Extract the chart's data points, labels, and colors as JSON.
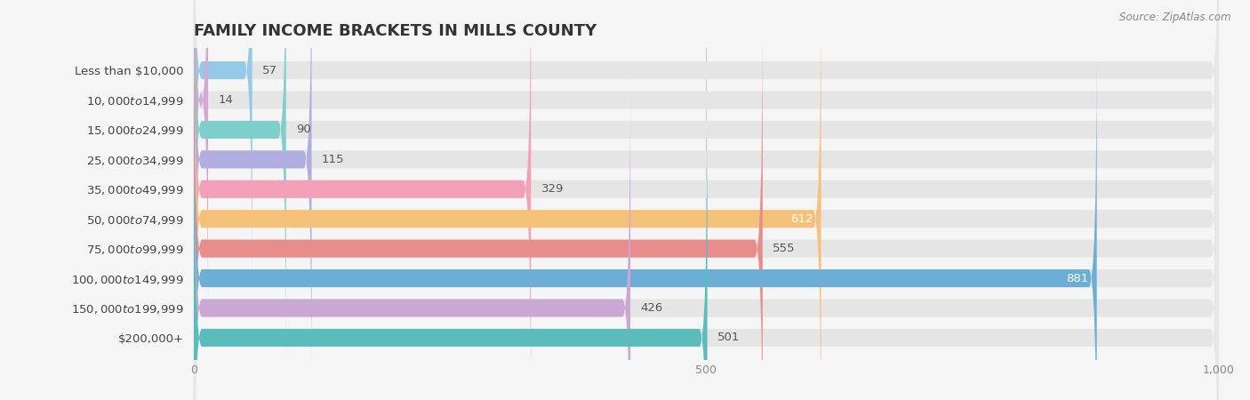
{
  "title": "FAMILY INCOME BRACKETS IN MILLS COUNTY",
  "source": "Source: ZipAtlas.com",
  "categories": [
    "Less than $10,000",
    "$10,000 to $14,999",
    "$15,000 to $24,999",
    "$25,000 to $34,999",
    "$35,000 to $49,999",
    "$50,000 to $74,999",
    "$75,000 to $99,999",
    "$100,000 to $149,999",
    "$150,000 to $199,999",
    "$200,000+"
  ],
  "values": [
    57,
    14,
    90,
    115,
    329,
    612,
    555,
    881,
    426,
    501
  ],
  "bar_colors": [
    "#94c9e8",
    "#d4a8d4",
    "#7ececa",
    "#b0aee0",
    "#f4a0b8",
    "#f5c07a",
    "#e88c8c",
    "#6baed6",
    "#c9a8d4",
    "#5bbcbc"
  ],
  "xlim": [
    0,
    1000
  ],
  "xticks": [
    0,
    500,
    1000
  ],
  "background_color": "#f5f5f5",
  "bar_background_color": "#e5e5e5",
  "title_fontsize": 13,
  "label_fontsize": 9.5,
  "value_fontsize": 9.5,
  "value_inside_threshold": 850,
  "value_inside_color": "white",
  "value_outside_color": "#555555"
}
